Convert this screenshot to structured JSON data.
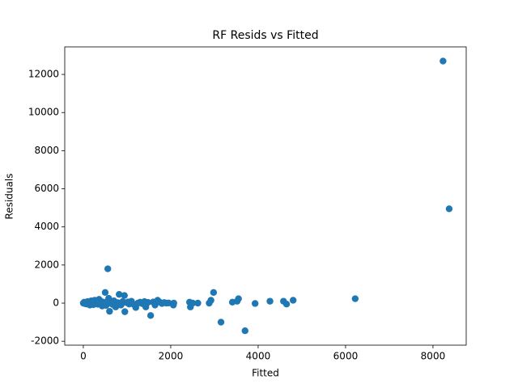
{
  "chart_data": {
    "type": "scatter",
    "title": "RF Resids vs Fitted",
    "xlabel": "Fitted",
    "ylabel": "Residuals",
    "color": "#1f77b4",
    "x": [
      0,
      20,
      40,
      60,
      80,
      100,
      120,
      150,
      180,
      200,
      230,
      260,
      300,
      330,
      360,
      400,
      430,
      460,
      500,
      520,
      560,
      580,
      600,
      640,
      680,
      700,
      740,
      780,
      820,
      860,
      900,
      940,
      950,
      1000,
      1050,
      1100,
      1150,
      1200,
      1250,
      1300,
      1350,
      1400,
      1430,
      1480,
      1540,
      1600,
      1640,
      1700,
      1750,
      1800,
      1850,
      1900,
      1950,
      2060,
      2070,
      2430,
      2450,
      2500,
      2620,
      2880,
      2920,
      2980,
      3150,
      3410,
      3520,
      3550,
      3700,
      3930,
      4270,
      4580,
      4650,
      4800,
      6220,
      8230,
      8370,
      250,
      350,
      450,
      550,
      650,
      750,
      880,
      1020,
      1120
    ],
    "y": [
      0,
      50,
      -30,
      20,
      -50,
      80,
      0,
      -100,
      120,
      60,
      -80,
      150,
      40,
      -60,
      200,
      100,
      -150,
      50,
      560,
      -120,
      1800,
      250,
      -430,
      100,
      -80,
      120,
      -200,
      30,
      460,
      -100,
      80,
      400,
      -450,
      20,
      -50,
      100,
      -60,
      -230,
      0,
      50,
      -30,
      80,
      -200,
      40,
      -650,
      60,
      -100,
      150,
      50,
      -20,
      30,
      0,
      10,
      -100,
      0,
      50,
      -200,
      0,
      0,
      0,
      150,
      560,
      -1000,
      50,
      100,
      230,
      -1450,
      -20,
      100,
      100,
      -50,
      150,
      230,
      12700,
      4950,
      -50,
      30,
      -20,
      80,
      -40,
      20,
      -30,
      60,
      -10
    ],
    "xlim": [
      -425,
      8760
    ],
    "ylim": [
      -2205,
      13445
    ],
    "xticks": [
      0,
      2000,
      4000,
      6000,
      8000
    ],
    "yticks": [
      -2000,
      0,
      2000,
      4000,
      6000,
      8000,
      10000,
      12000
    ]
  }
}
